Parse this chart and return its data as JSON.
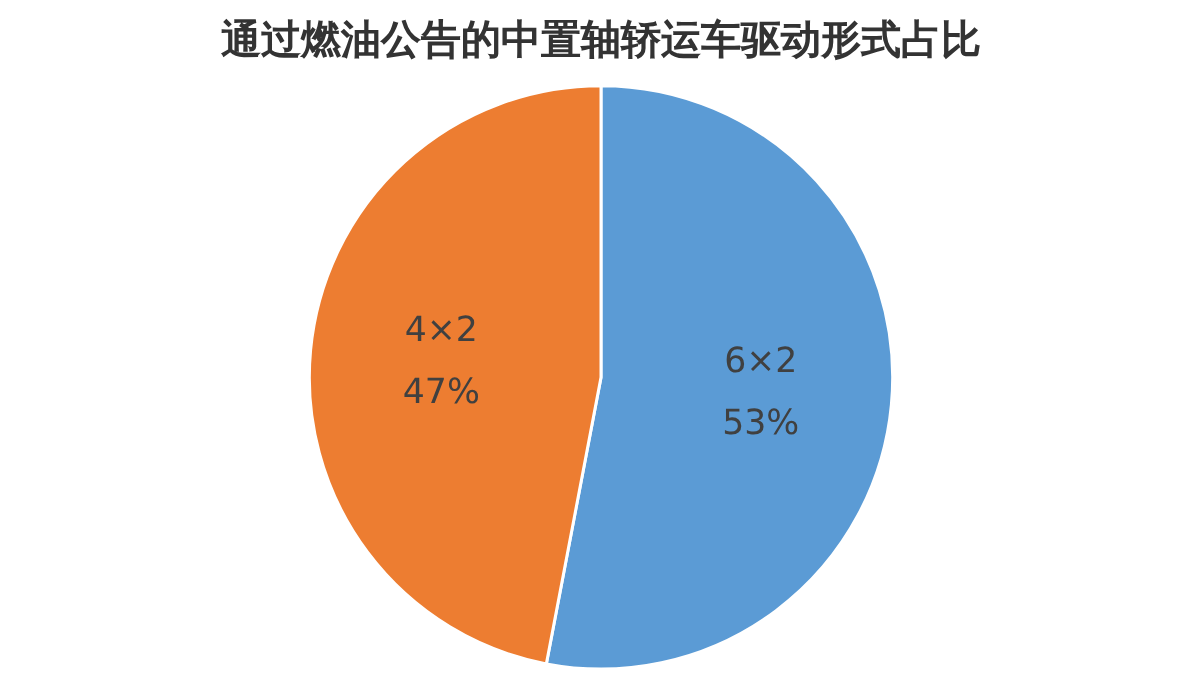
{
  "chart_data": {
    "type": "pie",
    "title": "通过燃油公告的中置轴轿运车驱动形式占比",
    "categories": [
      "6×2",
      "4×2"
    ],
    "values": [
      53,
      47
    ],
    "value_labels": [
      "53%",
      "47%"
    ],
    "colors": [
      "#5b9bd5",
      "#ed7d31"
    ],
    "legend": false
  }
}
